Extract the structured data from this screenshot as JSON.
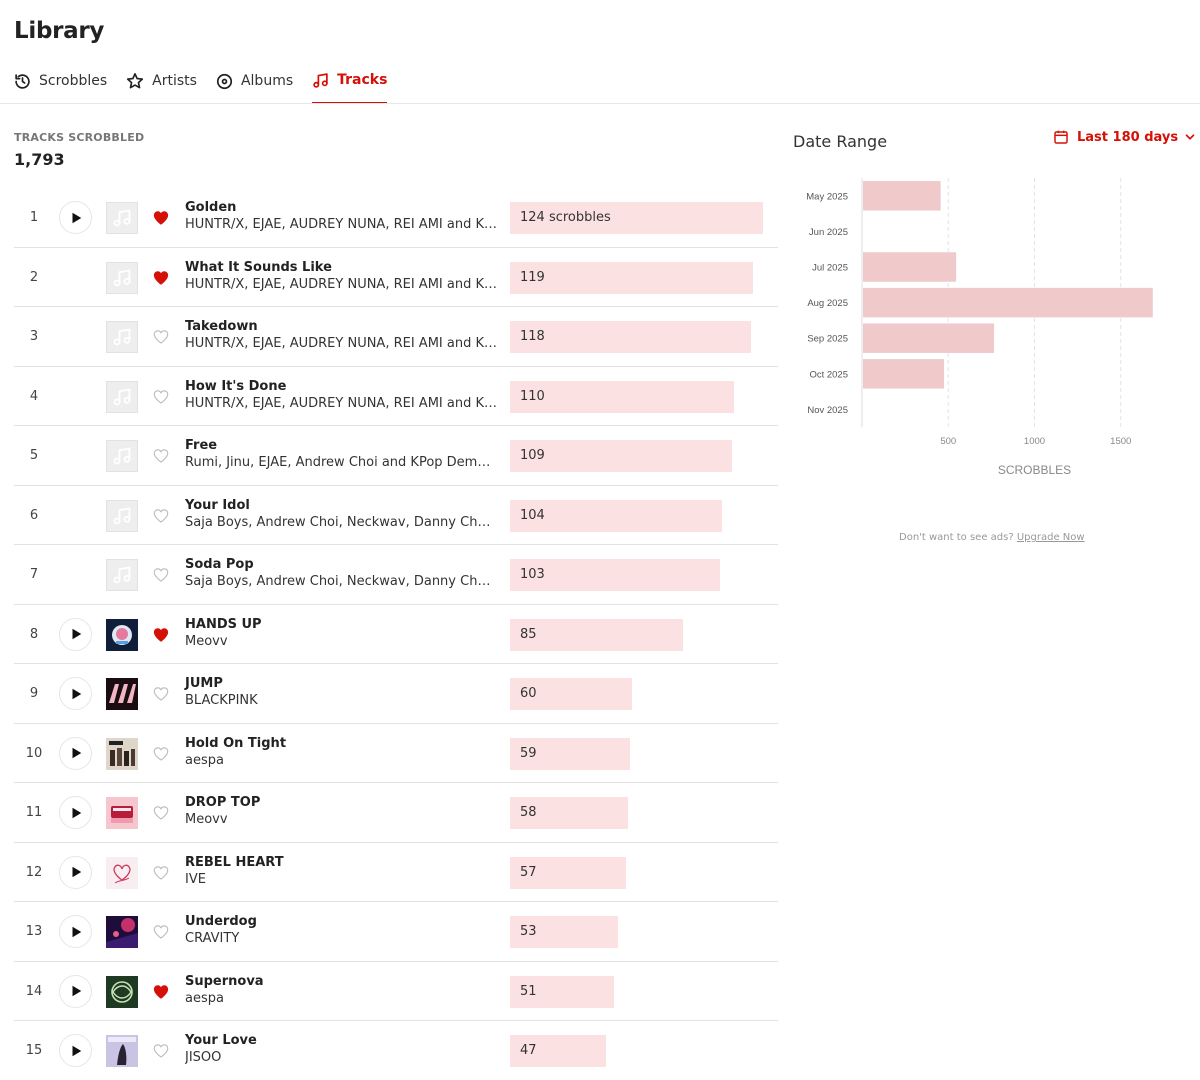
{
  "header": {
    "title": "Library"
  },
  "tabs": [
    {
      "label": "Scrobbles",
      "icon": "history-icon",
      "active": false
    },
    {
      "label": "Artists",
      "icon": "star-icon",
      "active": false
    },
    {
      "label": "Albums",
      "icon": "disc-icon",
      "active": false
    },
    {
      "label": "Tracks",
      "icon": "music-note-icon",
      "active": true
    }
  ],
  "stats": {
    "label": "TRACKS SCROBBLED",
    "value": "1,793"
  },
  "colors": {
    "accent": "#d51007",
    "bar": "#fbe1e1",
    "chart_bar": "#f0c9cb"
  },
  "tracks": [
    {
      "rank": "1",
      "name": "Golden",
      "artist": "HUNTR/X, EJAE, AUDREY NUNA, REI AMI and KPop Demon Hunters Cast",
      "scrobbles": 124,
      "label": "124 scrobbles",
      "loved": true,
      "playable": true,
      "cover": "placeholder"
    },
    {
      "rank": "2",
      "name": "What It Sounds Like",
      "artist": "HUNTR/X, EJAE, AUDREY NUNA, REI AMI and KPop Demon Hunters Cast",
      "scrobbles": 119,
      "label": "119",
      "loved": true,
      "playable": false,
      "cover": "placeholder"
    },
    {
      "rank": "3",
      "name": "Takedown",
      "artist": "HUNTR/X, EJAE, AUDREY NUNA, REI AMI and KPop Demon Hunters Cast",
      "scrobbles": 118,
      "label": "118",
      "loved": false,
      "playable": false,
      "cover": "placeholder"
    },
    {
      "rank": "4",
      "name": "How It's Done",
      "artist": "HUNTR/X, EJAE, AUDREY NUNA, REI AMI and KPop Demon Hunters Cast",
      "scrobbles": 110,
      "label": "110",
      "loved": false,
      "playable": false,
      "cover": "placeholder"
    },
    {
      "rank": "5",
      "name": "Free",
      "artist": "Rumi, Jinu, EJAE, Andrew Choi and KPop Demon Hunters Cast",
      "scrobbles": 109,
      "label": "109",
      "loved": false,
      "playable": false,
      "cover": "placeholder"
    },
    {
      "rank": "6",
      "name": "Your Idol",
      "artist": "Saja Boys, Andrew Choi, Neckwav, Danny Chung, Kevin Woo, samUIL Lee and KPop Demon Hunters Cast",
      "scrobbles": 104,
      "label": "104",
      "loved": false,
      "playable": false,
      "cover": "placeholder"
    },
    {
      "rank": "7",
      "name": "Soda Pop",
      "artist": "Saja Boys, Andrew Choi, Neckwav, Danny Chung, Kevin Woo, samUIL Lee and KPop Demon Hunters Cast",
      "scrobbles": 103,
      "label": "103",
      "loved": false,
      "playable": false,
      "cover": "placeholder"
    },
    {
      "rank": "8",
      "name": "HANDS UP",
      "artist": "Meovv",
      "scrobbles": 85,
      "label": "85",
      "loved": true,
      "playable": true,
      "cover": "hands-up"
    },
    {
      "rank": "9",
      "name": "JUMP",
      "artist": "BLACKPINK",
      "scrobbles": 60,
      "label": "60",
      "loved": false,
      "playable": true,
      "cover": "jump"
    },
    {
      "rank": "10",
      "name": "Hold On Tight",
      "artist": "aespa",
      "scrobbles": 59,
      "label": "59",
      "loved": false,
      "playable": true,
      "cover": "hold-on-tight"
    },
    {
      "rank": "11",
      "name": "DROP TOP",
      "artist": "Meovv",
      "scrobbles": 58,
      "label": "58",
      "loved": false,
      "playable": true,
      "cover": "drop-top"
    },
    {
      "rank": "12",
      "name": "REBEL HEART",
      "artist": "IVE",
      "scrobbles": 57,
      "label": "57",
      "loved": false,
      "playable": true,
      "cover": "rebel-heart"
    },
    {
      "rank": "13",
      "name": "Underdog",
      "artist": "CRAVITY",
      "scrobbles": 53,
      "label": "53",
      "loved": false,
      "playable": true,
      "cover": "underdog"
    },
    {
      "rank": "14",
      "name": "Supernova",
      "artist": "aespa",
      "scrobbles": 51,
      "label": "51",
      "loved": true,
      "playable": true,
      "cover": "supernova"
    },
    {
      "rank": "15",
      "name": "Your Love",
      "artist": "JISOO",
      "scrobbles": 47,
      "label": "47",
      "loved": false,
      "playable": true,
      "cover": "your-love"
    }
  ],
  "sidebar": {
    "title": "Date Range",
    "range_label": "Last 180 days",
    "ads_text": "Don't want to see ads?",
    "ads_link": "Upgrade Now"
  },
  "chart_data": {
    "type": "bar",
    "orientation": "horizontal",
    "categories": [
      "May 2025",
      "Jun 2025",
      "Jul 2025",
      "Aug 2025",
      "Sep 2025",
      "Oct 2025",
      "Nov 2025"
    ],
    "values": [
      450,
      0,
      540,
      1680,
      760,
      470,
      0
    ],
    "xticks": [
      "500",
      "1000",
      "1500",
      "2000"
    ],
    "xtick_values": [
      500,
      1000,
      1500,
      2000
    ],
    "xlim": [
      0,
      2000
    ],
    "xlabel": "SCROBBLES",
    "grid": true
  }
}
